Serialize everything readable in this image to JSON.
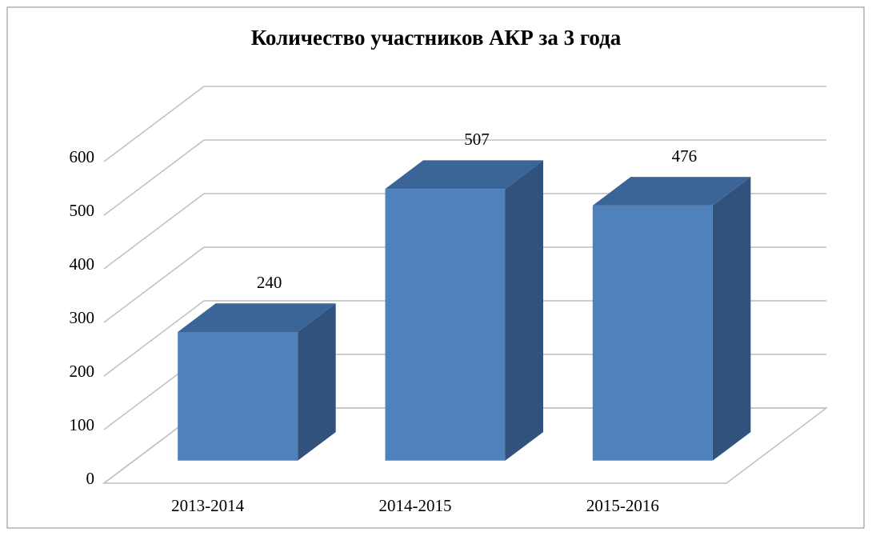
{
  "chart_data": {
    "type": "bar",
    "title": "Количество участников АКР за 3 года",
    "categories": [
      "2013-2014",
      "2014-2015",
      "2015-2016"
    ],
    "values": [
      240,
      507,
      476
    ],
    "color": "#4f81bd",
    "ylim": [
      0,
      600
    ],
    "yticks": [
      0,
      100,
      200,
      300,
      400,
      500,
      600
    ],
    "grid": true
  }
}
